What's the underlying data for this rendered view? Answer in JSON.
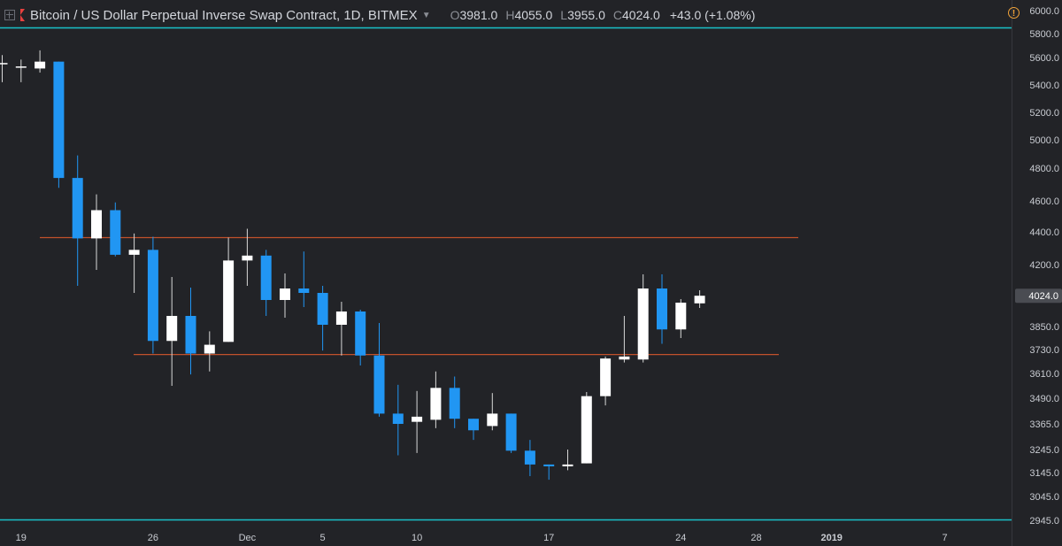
{
  "header": {
    "symbol_title": "Bitcoin / US Dollar Perpetual Inverse Swap Contract, 1D, BITMEX",
    "open_key": "O",
    "open_val": "3981.0",
    "high_key": "H",
    "high_val": "4055.0",
    "low_key": "L",
    "low_val": "3955.0",
    "close_key": "C",
    "close_val": "4024.0",
    "change": "+43.0 (+1.08%)"
  },
  "colors": {
    "background": "#222327",
    "up_candle": "#ffffff",
    "down_candle": "#2196f3",
    "wick": "#d8d8d8",
    "hline": "#c1512b",
    "accent_line": "#19c1c8",
    "axis_text": "#c9ccd2"
  },
  "chart_data": {
    "type": "candlestick",
    "title": "Bitcoin / US Dollar Perpetual Inverse Swap Contract, 1D, BITMEX",
    "x_tick_labels": [
      "19",
      "26",
      "Dec",
      "5",
      "10",
      "17",
      "24",
      "28",
      "2019",
      "7"
    ],
    "y_tick_labels": [
      "6000.0",
      "5800.0",
      "5600.0",
      "5400.0",
      "5200.0",
      "5000.0",
      "4800.0",
      "4600.0",
      "4400.0",
      "4200.0",
      "3850.0",
      "3730.0",
      "3610.0",
      "3490.0",
      "3365.0",
      "3245.0",
      "3145.0",
      "3045.0",
      "2945.0"
    ],
    "last_price_label": "4024.0",
    "horizontal_lines": [
      4365,
      3705
    ],
    "candles": [
      {
        "date": "2018-11-18",
        "o": 5560,
        "h": 5620,
        "l": 5420,
        "c": 5560
      },
      {
        "date": "2018-11-19",
        "o": 5535,
        "h": 5585,
        "l": 5420,
        "c": 5535
      },
      {
        "date": "2018-11-20",
        "o": 5520,
        "h": 5660,
        "l": 5490,
        "c": 5570
      },
      {
        "date": "2018-11-21",
        "o": 5570,
        "h": 5570,
        "l": 4680,
        "c": 4740
      },
      {
        "date": "2018-11-22",
        "o": 4740,
        "h": 4890,
        "l": 4080,
        "c": 4360
      },
      {
        "date": "2018-11-23",
        "o": 4360,
        "h": 4640,
        "l": 4170,
        "c": 4540
      },
      {
        "date": "2018-11-24",
        "o": 4540,
        "h": 4590,
        "l": 4250,
        "c": 4260
      },
      {
        "date": "2018-11-25",
        "o": 4260,
        "h": 4390,
        "l": 4040,
        "c": 4290
      },
      {
        "date": "2018-11-26",
        "o": 4290,
        "h": 4370,
        "l": 3710,
        "c": 3775
      },
      {
        "date": "2018-11-27",
        "o": 3775,
        "h": 4130,
        "l": 3550,
        "c": 3910
      },
      {
        "date": "2018-11-28",
        "o": 3910,
        "h": 4070,
        "l": 3605,
        "c": 3710
      },
      {
        "date": "2018-11-29",
        "o": 3710,
        "h": 3825,
        "l": 3620,
        "c": 3755
      },
      {
        "date": "2018-11-30",
        "o": 3770,
        "h": 4365,
        "l": 3770,
        "c": 4225
      },
      {
        "date": "2018-12-01",
        "o": 4225,
        "h": 4420,
        "l": 4080,
        "c": 4255
      },
      {
        "date": "2018-12-02",
        "o": 4255,
        "h": 4290,
        "l": 3910,
        "c": 4000
      },
      {
        "date": "2018-12-03",
        "o": 4000,
        "h": 4150,
        "l": 3900,
        "c": 4065
      },
      {
        "date": "2018-12-04",
        "o": 4065,
        "h": 4280,
        "l": 3960,
        "c": 4040
      },
      {
        "date": "2018-12-05",
        "o": 4040,
        "h": 4080,
        "l": 3725,
        "c": 3860
      },
      {
        "date": "2018-12-06",
        "o": 3860,
        "h": 3990,
        "l": 3700,
        "c": 3935
      },
      {
        "date": "2018-12-07",
        "o": 3935,
        "h": 3945,
        "l": 3650,
        "c": 3700
      },
      {
        "date": "2018-12-08",
        "o": 3700,
        "h": 3870,
        "l": 3400,
        "c": 3415
      },
      {
        "date": "2018-12-09",
        "o": 3415,
        "h": 3555,
        "l": 3220,
        "c": 3365
      },
      {
        "date": "2018-12-10",
        "o": 3375,
        "h": 3525,
        "l": 3230,
        "c": 3400
      },
      {
        "date": "2018-12-11",
        "o": 3385,
        "h": 3620,
        "l": 3345,
        "c": 3540
      },
      {
        "date": "2018-12-12",
        "o": 3540,
        "h": 3595,
        "l": 3345,
        "c": 3390
      },
      {
        "date": "2018-12-13",
        "o": 3390,
        "h": 3390,
        "l": 3290,
        "c": 3335
      },
      {
        "date": "2018-12-14",
        "o": 3355,
        "h": 3515,
        "l": 3335,
        "c": 3415
      },
      {
        "date": "2018-12-15",
        "o": 3415,
        "h": 3415,
        "l": 3230,
        "c": 3240
      },
      {
        "date": "2018-12-16",
        "o": 3240,
        "h": 3290,
        "l": 3130,
        "c": 3180
      },
      {
        "date": "2018-12-17",
        "o": 3180,
        "h": 3180,
        "l": 3115,
        "c": 3172
      },
      {
        "date": "2018-12-18",
        "o": 3172,
        "h": 3245,
        "l": 3155,
        "c": 3180
      },
      {
        "date": "2018-12-19",
        "o": 3185,
        "h": 3520,
        "l": 3185,
        "c": 3500
      },
      {
        "date": "2018-12-20",
        "o": 3500,
        "h": 3695,
        "l": 3455,
        "c": 3685
      },
      {
        "date": "2018-12-21",
        "o": 3680,
        "h": 3910,
        "l": 3665,
        "c": 3695
      },
      {
        "date": "2018-12-22",
        "o": 3680,
        "h": 4145,
        "l": 3665,
        "c": 4065
      },
      {
        "date": "2018-12-23",
        "o": 4065,
        "h": 4145,
        "l": 3760,
        "c": 3835
      },
      {
        "date": "2018-12-24",
        "o": 3835,
        "h": 4005,
        "l": 3790,
        "c": 3985
      },
      {
        "date": "2018-12-25",
        "o": 3981,
        "h": 4055,
        "l": 3955,
        "c": 4024
      }
    ]
  }
}
